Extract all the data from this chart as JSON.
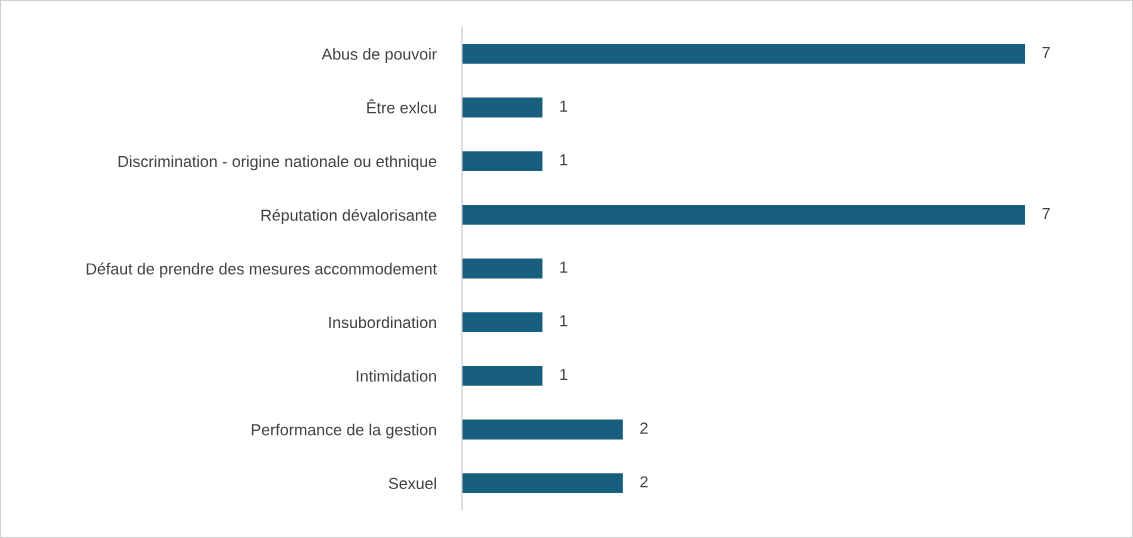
{
  "chart_data": {
    "type": "bar",
    "orientation": "horizontal",
    "categories": [
      "Abus de pouvoir",
      "Être exlcu",
      "Discrimination - origine nationale ou ethnique",
      "Réputation dévalorisante",
      "Défaut de prendre des mesures accommodement",
      "Insubordination",
      "Intimidation",
      "Performance de la gestion",
      "Sexuel"
    ],
    "values": [
      7,
      1,
      1,
      7,
      1,
      1,
      1,
      2,
      2
    ],
    "color": "#175e7f",
    "data_labels": true,
    "grid": false,
    "legend": false
  }
}
